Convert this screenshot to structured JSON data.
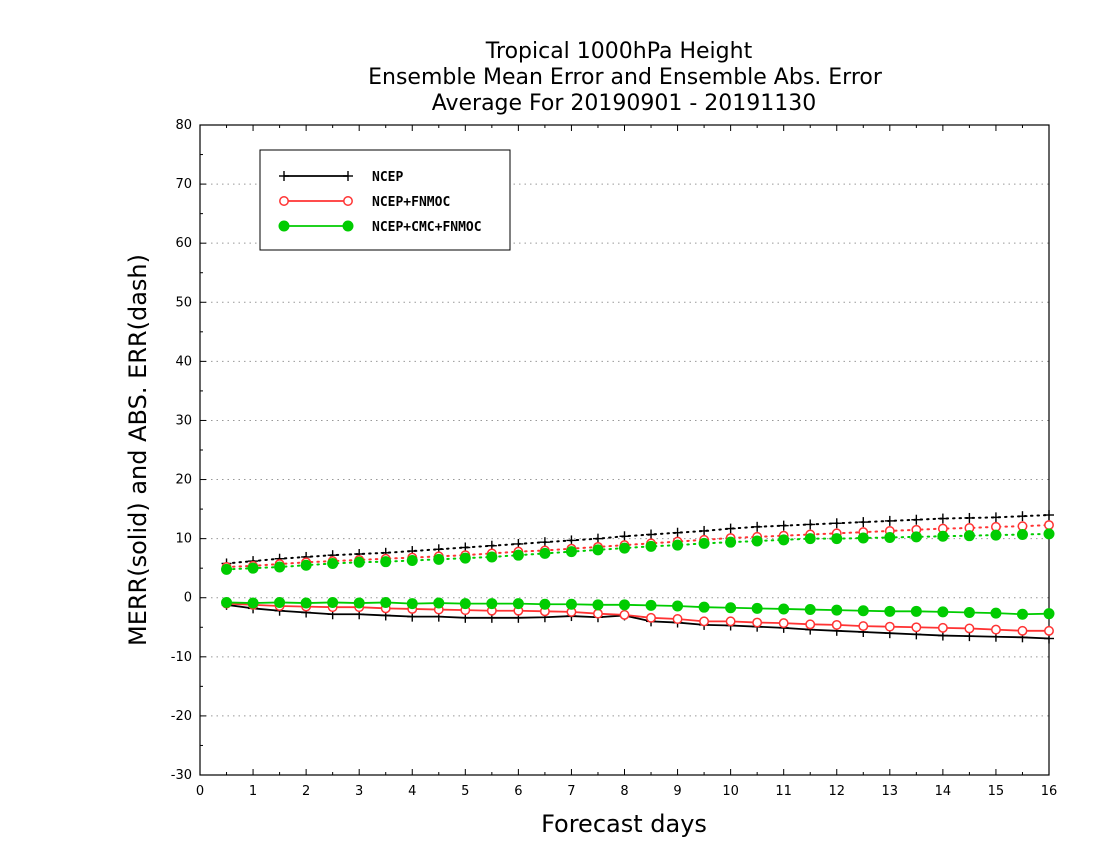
{
  "chart_data": {
    "type": "line",
    "title_lines": [
      "Tropical 1000hPa Height",
      "Ensemble Mean Error and Ensemble Abs. Error",
      "Average For 20190901 - 20191130"
    ],
    "xlabel": "Forecast days",
    "ylabel": "MERR(solid) and ABS. ERR(dash)",
    "xlim": [
      0,
      16
    ],
    "ylim": [
      -30,
      80
    ],
    "x_ticks": [
      "0",
      "1",
      "2",
      "3",
      "4",
      "5",
      "6",
      "7",
      "8",
      "9",
      "10",
      "11",
      "12",
      "13",
      "14",
      "15",
      "16"
    ],
    "y_ticks": [
      "-30",
      "-20",
      "-10",
      "0",
      "10",
      "20",
      "30",
      "40",
      "50",
      "60",
      "70",
      "80"
    ],
    "grid": "horizontal dotted",
    "legend_position": "top-left",
    "x": [
      0.5,
      1,
      1.5,
      2,
      2.5,
      3,
      3.5,
      4,
      4.5,
      5,
      5.5,
      6,
      6.5,
      7,
      7.5,
      8,
      8.5,
      9,
      9.5,
      10,
      10.5,
      11,
      11.5,
      12,
      12.5,
      13,
      13.5,
      14,
      14.5,
      15,
      15.5,
      16
    ],
    "series": [
      {
        "name": "NCEP",
        "color": "#000000",
        "marker": "plus",
        "merr": [
          -1.2,
          -1.8,
          -2.2,
          -2.5,
          -2.8,
          -2.8,
          -3.0,
          -3.2,
          -3.2,
          -3.4,
          -3.4,
          -3.4,
          -3.3,
          -3.1,
          -3.3,
          -3.0,
          -4.0,
          -4.2,
          -4.6,
          -4.7,
          -4.9,
          -5.1,
          -5.4,
          -5.6,
          -5.8,
          -6.0,
          -6.2,
          -6.4,
          -6.5,
          -6.6,
          -6.7,
          -6.9
        ],
        "abs_err": [
          5.8,
          6.2,
          6.6,
          6.9,
          7.2,
          7.4,
          7.6,
          7.9,
          8.2,
          8.5,
          8.8,
          9.1,
          9.4,
          9.7,
          10.0,
          10.4,
          10.7,
          11.0,
          11.3,
          11.7,
          12.0,
          12.2,
          12.4,
          12.6,
          12.8,
          13.0,
          13.2,
          13.4,
          13.5,
          13.6,
          13.8,
          14.0
        ]
      },
      {
        "name": "NCEP+FNMOC",
        "color": "#ff3333",
        "marker": "open-circle",
        "merr": [
          -1.0,
          -1.2,
          -1.4,
          -1.5,
          -1.6,
          -1.6,
          -1.8,
          -1.9,
          -2.0,
          -2.1,
          -2.2,
          -2.2,
          -2.3,
          -2.4,
          -2.7,
          -2.9,
          -3.4,
          -3.6,
          -4.0,
          -4.0,
          -4.2,
          -4.3,
          -4.5,
          -4.6,
          -4.8,
          -4.9,
          -5.0,
          -5.1,
          -5.2,
          -5.4,
          -5.6,
          -5.6
        ],
        "abs_err": [
          5.2,
          5.4,
          5.7,
          6.0,
          6.2,
          6.4,
          6.6,
          6.8,
          7.0,
          7.2,
          7.5,
          7.8,
          8.0,
          8.3,
          8.6,
          8.9,
          9.2,
          9.5,
          9.8,
          10.1,
          10.3,
          10.5,
          10.7,
          10.9,
          11.1,
          11.3,
          11.5,
          11.7,
          11.8,
          12.0,
          12.1,
          12.3
        ]
      },
      {
        "name": "NCEP+CMC+FNMOC",
        "color": "#00cc00",
        "marker": "filled-circle",
        "merr": [
          -0.8,
          -0.9,
          -0.8,
          -0.9,
          -0.8,
          -0.9,
          -0.8,
          -1.0,
          -0.9,
          -1.0,
          -1.0,
          -1.0,
          -1.1,
          -1.1,
          -1.2,
          -1.2,
          -1.3,
          -1.4,
          -1.6,
          -1.7,
          -1.8,
          -1.9,
          -2.0,
          -2.1,
          -2.2,
          -2.3,
          -2.3,
          -2.4,
          -2.5,
          -2.6,
          -2.8,
          -2.7
        ],
        "abs_err": [
          4.8,
          5.0,
          5.2,
          5.5,
          5.8,
          6.0,
          6.1,
          6.3,
          6.5,
          6.7,
          6.9,
          7.2,
          7.5,
          7.8,
          8.1,
          8.4,
          8.7,
          8.9,
          9.2,
          9.4,
          9.6,
          9.8,
          10.0,
          10.0,
          10.1,
          10.2,
          10.3,
          10.4,
          10.5,
          10.6,
          10.7,
          10.8
        ]
      }
    ]
  }
}
